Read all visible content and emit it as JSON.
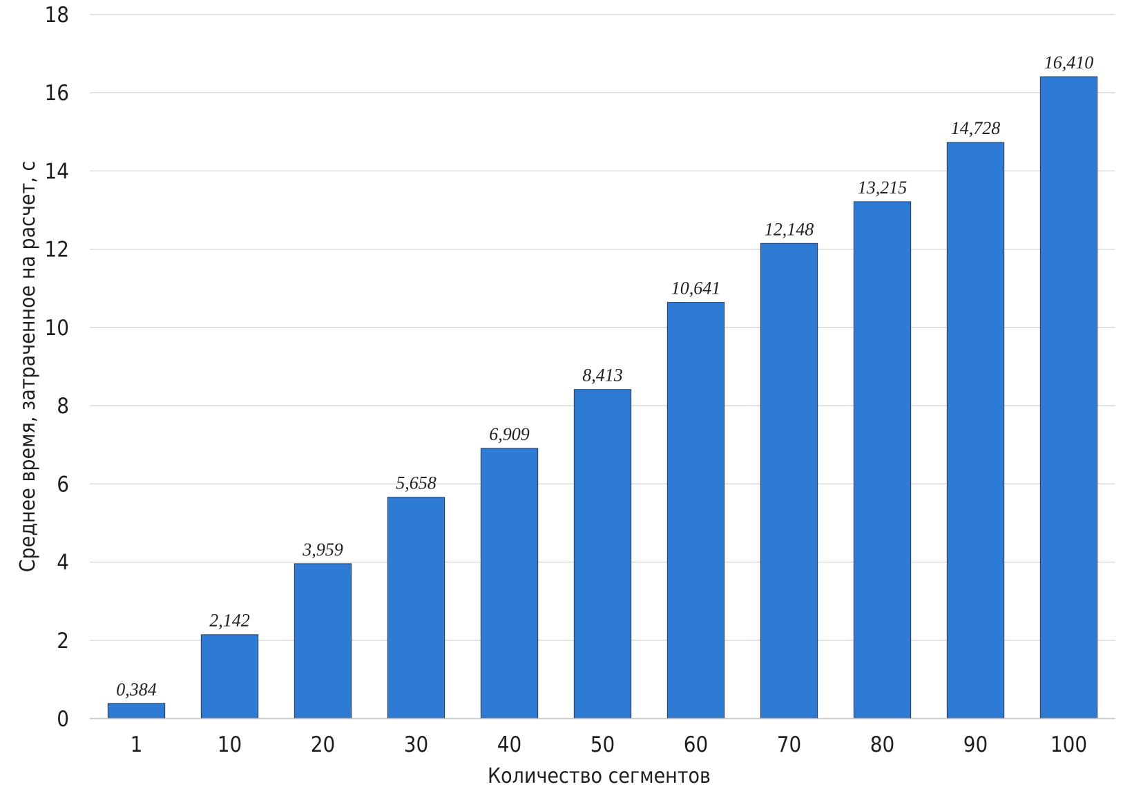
{
  "chart_data": {
    "type": "bar",
    "title": "",
    "xlabel": "Количество сегментов",
    "ylabel": "Среднее время, затраченное на расчет, с",
    "categories": [
      "1",
      "10",
      "20",
      "30",
      "40",
      "50",
      "60",
      "70",
      "80",
      "90",
      "100"
    ],
    "values": [
      0.384,
      2.142,
      3.959,
      5.658,
      6.909,
      8.413,
      10.641,
      12.148,
      13.215,
      14.728,
      16.41
    ],
    "value_labels": [
      "0,384",
      "2,142",
      "3,959",
      "5,658",
      "6,909",
      "8,413",
      "10,641",
      "12,148",
      "13,215",
      "14,728",
      "16,410"
    ],
    "ylim": [
      0,
      18
    ],
    "yticks": [
      0,
      2,
      4,
      6,
      8,
      10,
      12,
      14,
      16,
      18
    ],
    "grid": true,
    "legend": "none",
    "colors": {
      "bar": "#2e7bd6",
      "bar_stroke": "#3a3a3a",
      "grid": "#d0d0d0"
    }
  }
}
